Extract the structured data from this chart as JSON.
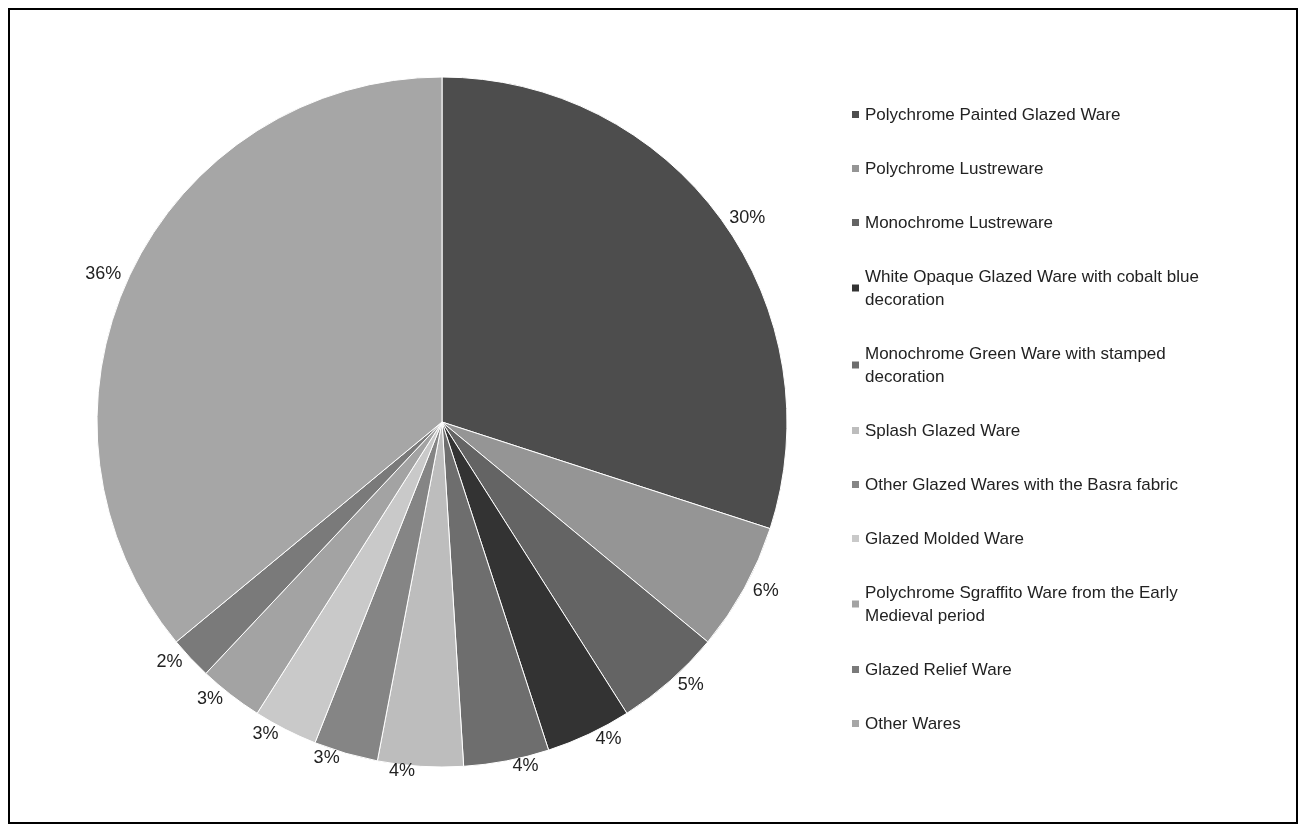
{
  "chart_data": {
    "type": "pie",
    "categories": [
      "Polychrome Painted Glazed Ware",
      "Polychrome Lustreware",
      "Monochrome Lustreware",
      "White Opaque Glazed Ware with cobalt blue decoration",
      "Monochrome Green Ware with stamped decoration",
      "Splash Glazed Ware",
      "Other Glazed Wares with the Basra fabric",
      "Glazed Molded Ware",
      "Polychrome Sgraffito Ware from the Early Medieval period",
      "Glazed Relief Ware",
      "Other Wares"
    ],
    "values": [
      30,
      6,
      5,
      4,
      4,
      4,
      3,
      3,
      3,
      2,
      36
    ],
    "colors": [
      "#4d4d4d",
      "#959595",
      "#646464",
      "#333333",
      "#6e6e6e",
      "#bdbdbd",
      "#858585",
      "#c9c9c9",
      "#a3a3a3",
      "#7a7a7a",
      "#a6a6a6"
    ],
    "value_labels": [
      "30%",
      "6%",
      "5%",
      "4%",
      "4%",
      "4%",
      "3%",
      "3%",
      "3%",
      "2%",
      "36%"
    ],
    "legend": "right"
  }
}
